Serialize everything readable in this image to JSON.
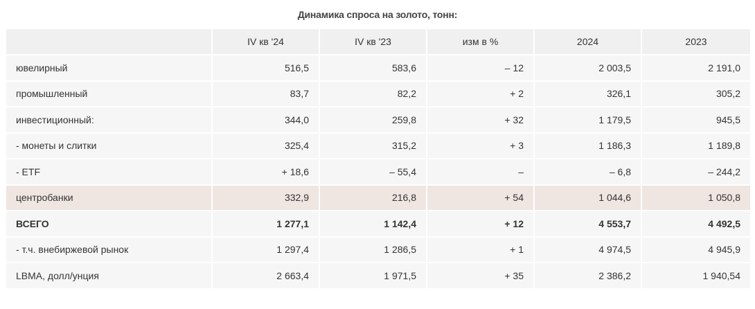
{
  "title": "Динамика спроса на золото, тонн:",
  "table": {
    "header": [
      "IV кв '24",
      "IV кв '23",
      "изм в %",
      "2024",
      "2023"
    ],
    "rows": [
      [
        "ювелирный",
        "516,5",
        "583,6",
        "– 12",
        "2 003,5",
        "2 191,0"
      ],
      [
        "промышленный",
        "83,7",
        "82,2",
        "+ 2",
        "326,1",
        "305,2"
      ],
      [
        "инвестиционный:",
        "344,0",
        "259,8",
        "+ 32",
        "1 179,5",
        "945,5"
      ],
      [
        "- монеты и слитки",
        "325,4",
        "315,2",
        "+ 3",
        "1 186,3",
        "1 189,8"
      ],
      [
        "- ETF",
        "+ 18,6",
        "– 55,4",
        "–",
        "– 6,8",
        "– 244,2"
      ],
      [
        "центробанки",
        "332,9",
        "216,8",
        "+ 54",
        "1 044,6",
        "1 050,8"
      ],
      [
        "ВСЕГО",
        "1 277,1",
        "1 142,4",
        "+ 12",
        "4 553,7",
        "4 492,5"
      ],
      [
        "- т.ч. внебиржевой рынок",
        "1 297,4",
        "1 286,5",
        "+ 1",
        "4 974,5",
        "4 945,9"
      ],
      [
        "LBMA, долл/унция",
        "2 663,4",
        "1 971,5",
        "+ 35",
        "2 386,2",
        "1 940,54"
      ]
    ]
  }
}
